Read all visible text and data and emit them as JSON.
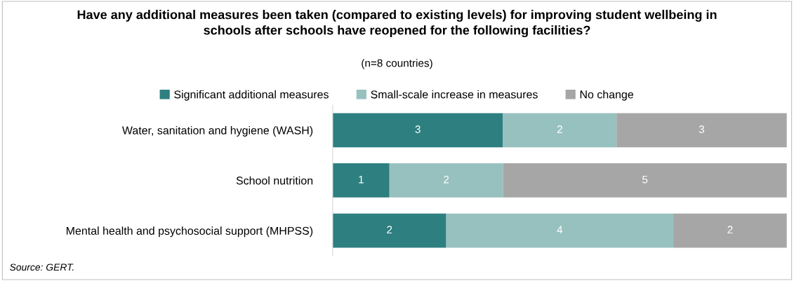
{
  "chart_data": {
    "type": "bar",
    "orientation": "horizontal",
    "stacked": true,
    "title": "Have any additional measures been taken (compared to existing levels) for improving student wellbeing in\nschools after schools have reopened for the following facilities?",
    "subtitle": "(n=8 countries)",
    "categories": [
      "Water, sanitation and hygiene (WASH)",
      "School nutrition",
      "Mental health and psychosocial support (MHPSS)"
    ],
    "series": [
      {
        "name": "Significant additional measures",
        "color": "#2e7f80",
        "values": [
          3,
          1,
          2
        ]
      },
      {
        "name": "Small-scale increase in measures",
        "color": "#97c1bf",
        "values": [
          2,
          2,
          4
        ]
      },
      {
        "name": "No change",
        "color": "#a6a6a6",
        "values": [
          3,
          5,
          2
        ]
      }
    ],
    "xlim": [
      0,
      8
    ],
    "data_labels": true,
    "legend": "top",
    "grid": false,
    "annotations": [
      "Source: GERT."
    ]
  }
}
